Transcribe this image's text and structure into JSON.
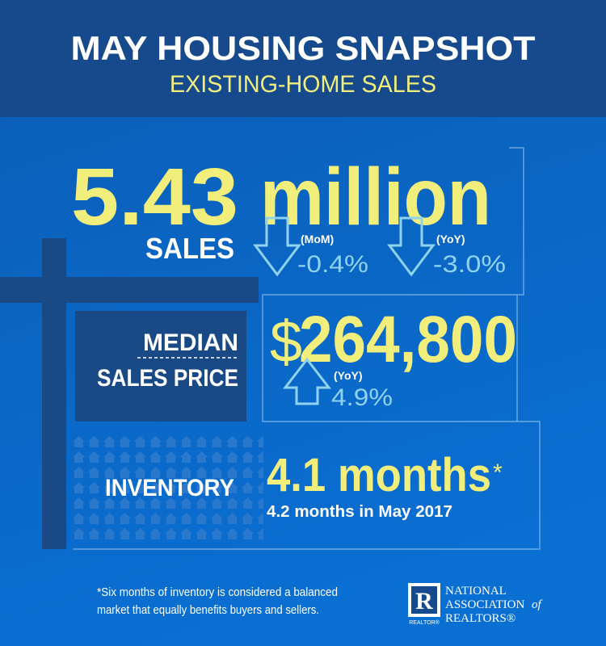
{
  "header": {
    "title": "MAY HOUSING SNAPSHOT",
    "subtitle": "EXISTING-HOME SALES"
  },
  "sales": {
    "value": "5.43",
    "unit": "million",
    "label": "SALES",
    "changes": [
      {
        "period": "(MoM)",
        "value": "-0.4%"
      },
      {
        "period": "(YoY)",
        "value": "-3.0%"
      }
    ]
  },
  "price": {
    "label_lines": [
      "MEDIAN",
      "SALES PRICE"
    ],
    "currency": "$",
    "value": "264,800",
    "change": {
      "period": "(YoY)",
      "value": "4.9%"
    }
  },
  "inventory": {
    "label": "INVENTORY",
    "value": "4.1 months",
    "asterisk": "*",
    "note": "4.2 months in May 2017"
  },
  "footnote": [
    "*Six months of inventory is considered a balanced",
    "market that equally benefits buyers and sellers."
  ],
  "logo": {
    "mark": "R",
    "tag": "REALTOR®",
    "lines": [
      "NATIONAL",
      "ASSOCIATION",
      "of",
      "REALTORS®"
    ]
  }
}
